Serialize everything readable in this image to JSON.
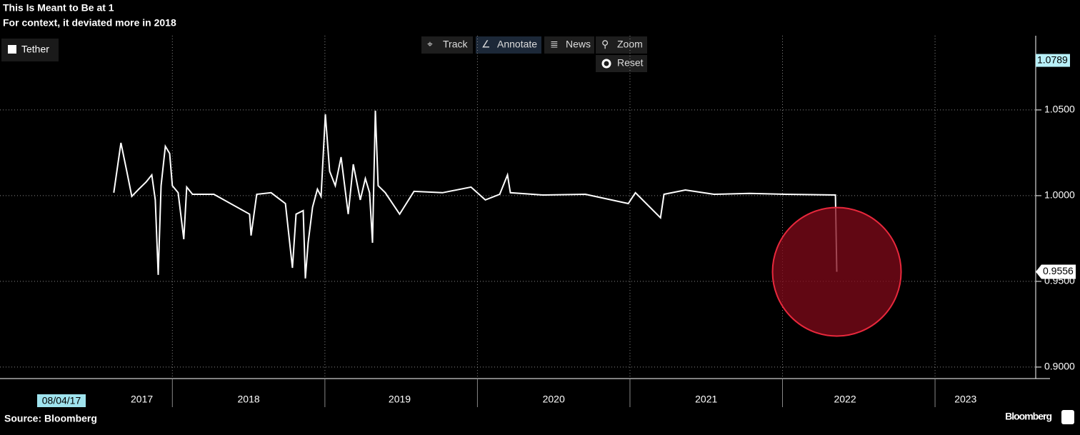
{
  "toolbar": [
    "Track",
    "Annotate",
    "News",
    "Zoom",
    "Reset"
  ],
  "footer": {
    "source": "Source: Bloomberg",
    "brand": "Bloomberg"
  },
  "chart_data": {
    "type": "line",
    "title": "This Is Meant to Be at 1",
    "subtitle": "For context, it deviated more in 2018",
    "start_date_label": "08/04/17",
    "series": [
      {
        "name": "Tether",
        "color": "#ffffff",
        "x": [
          2017.616,
          2017.663,
          2017.701,
          2017.734,
          2017.78,
          2017.827,
          2017.865,
          2017.888,
          2017.907,
          2017.926,
          2017.954,
          2017.982,
          2018.0,
          2018.038,
          2018.075,
          2018.094,
          2018.132,
          2018.272,
          2018.506,
          2018.516,
          2018.553,
          2018.647,
          2018.741,
          2018.787,
          2018.811,
          2018.858,
          2018.872,
          2018.89,
          2018.919,
          2018.951,
          2018.975,
          2019.003,
          2019.031,
          2019.068,
          2019.106,
          2019.153,
          2019.186,
          2019.232,
          2019.265,
          2019.293,
          2019.312,
          2019.331,
          2019.349,
          2019.396,
          2019.49,
          2019.584,
          2019.771,
          2019.958,
          2020.052,
          2020.146,
          2020.197,
          2020.216,
          2020.427,
          2020.708,
          2020.989,
          2021.036,
          2021.2,
          2021.223,
          2021.363,
          2021.551,
          2021.785,
          2022.019,
          2022.347,
          2022.356
        ],
        "values": [
          1.0017,
          1.0308,
          1.0142,
          0.9996,
          1.0038,
          1.0079,
          1.0121,
          0.9975,
          0.9538,
          1.0058,
          1.0288,
          1.0246,
          1.0058,
          1.0017,
          0.9746,
          1.005,
          1.0008,
          1.0008,
          0.9892,
          0.9767,
          1.0008,
          1.0017,
          0.9954,
          0.9579,
          0.9892,
          0.9913,
          0.9517,
          0.9725,
          0.9933,
          1.0038,
          0.9996,
          1.0475,
          1.0142,
          1.0058,
          1.0225,
          0.9892,
          1.0183,
          0.9975,
          1.01,
          1.0017,
          0.9725,
          1.0496,
          1.0058,
          1.0017,
          0.9892,
          1.0025,
          1.0017,
          1.005,
          0.9975,
          1.0008,
          1.0121,
          1.0017,
          1.0004,
          1.0008,
          0.9954,
          1.0017,
          0.9871,
          1.0008,
          1.0033,
          1.0008,
          1.0013,
          1.0008,
          1.0004,
          0.9556
        ]
      }
    ],
    "xlim": [
      2016.87,
      2023.66
    ],
    "xticks": [
      {
        "value": 2017.8,
        "label": "2017"
      },
      {
        "value": 2018.5,
        "label": "2018"
      },
      {
        "value": 2019.49,
        "label": "2019"
      },
      {
        "value": 2020.5,
        "label": "2020"
      },
      {
        "value": 2021.5,
        "label": "2021"
      },
      {
        "value": 2022.41,
        "label": "2022"
      },
      {
        "value": 2023.2,
        "label": "2023"
      }
    ],
    "ylim": [
      0.8933,
      1.0933
    ],
    "yticks": [
      {
        "value": 0.9,
        "label": "0.9000"
      },
      {
        "value": 0.95,
        "label": "0.9500"
      },
      {
        "value": 1,
        "label": "1.0000"
      },
      {
        "value": 1.05,
        "label": "1.0500"
      }
    ],
    "markers": [
      {
        "value": 1.0789,
        "label": "1.0789"
      },
      {
        "value": 0.9556,
        "label": "0.9556"
      }
    ],
    "grid": true,
    "legend": "top-left"
  }
}
